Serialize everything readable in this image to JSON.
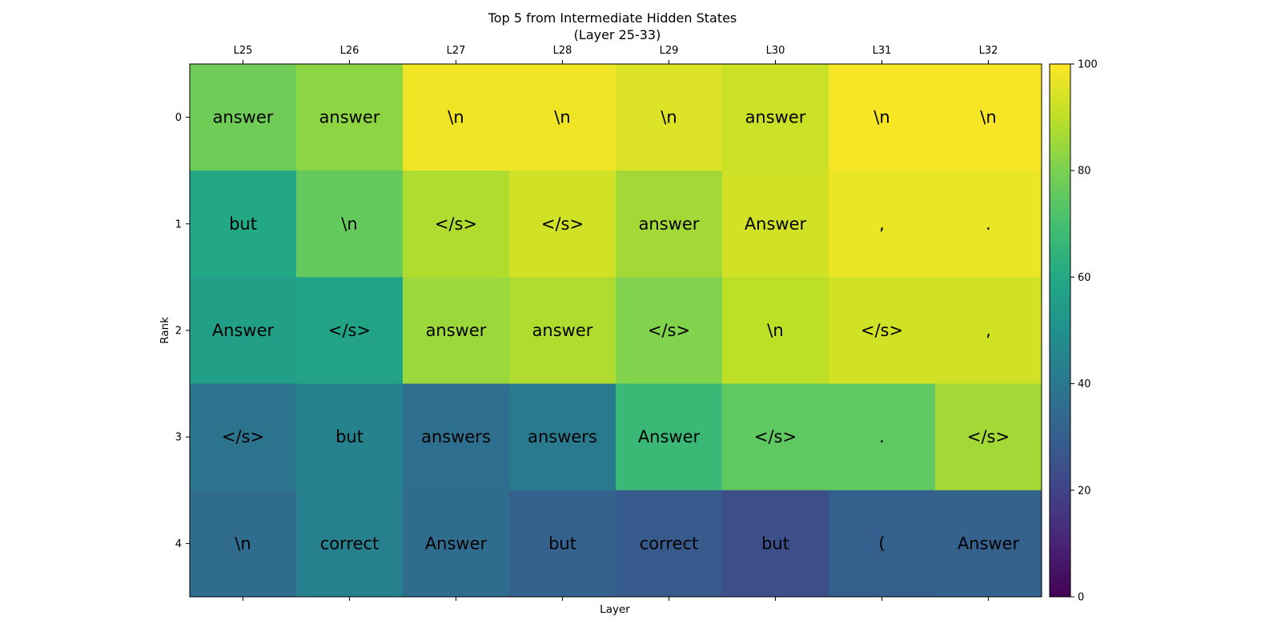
{
  "chart_data": {
    "type": "heatmap",
    "title": [
      "Top 5 from Intermediate Hidden States",
      "(Layer 25-33)"
    ],
    "xlabel": "Layer",
    "ylabel": "Rank",
    "x_ticks": [
      "L25",
      "L26",
      "L27",
      "L28",
      "L29",
      "L30",
      "L31",
      "L32"
    ],
    "y_ticks": [
      "0",
      "1",
      "2",
      "3",
      "4"
    ],
    "colorbar": {
      "min": 0,
      "max": 100,
      "ticks": [
        0,
        20,
        40,
        60,
        80,
        100
      ],
      "colormap": "viridis"
    },
    "tokens": [
      [
        "answer",
        "answer",
        "\\n",
        "\\n",
        "\\n",
        "answer",
        "\\n",
        "\\n"
      ],
      [
        "but",
        "\\n",
        "</s>",
        "</s>",
        "answer",
        "Answer",
        ",",
        "."
      ],
      [
        "Answer",
        "</s>",
        "answer",
        "answer",
        "</s>",
        "\\n",
        "</s>",
        ","
      ],
      [
        "</s>",
        "but",
        "answers",
        "answers",
        "Answer",
        "</s>",
        ".",
        "</s>"
      ],
      [
        "\\n",
        "correct",
        "Answer",
        "but",
        "correct",
        "but",
        "(",
        "Answer"
      ]
    ],
    "values": [
      [
        78,
        83,
        98,
        98,
        95,
        92,
        99,
        99
      ],
      [
        60,
        76,
        88,
        93,
        86,
        93,
        97,
        97
      ],
      [
        56,
        58,
        85,
        88,
        81,
        90,
        93,
        93
      ],
      [
        38,
        44,
        36,
        41,
        67,
        75,
        75,
        86
      ],
      [
        35,
        43,
        35,
        31,
        28,
        24,
        30,
        31
      ]
    ]
  }
}
